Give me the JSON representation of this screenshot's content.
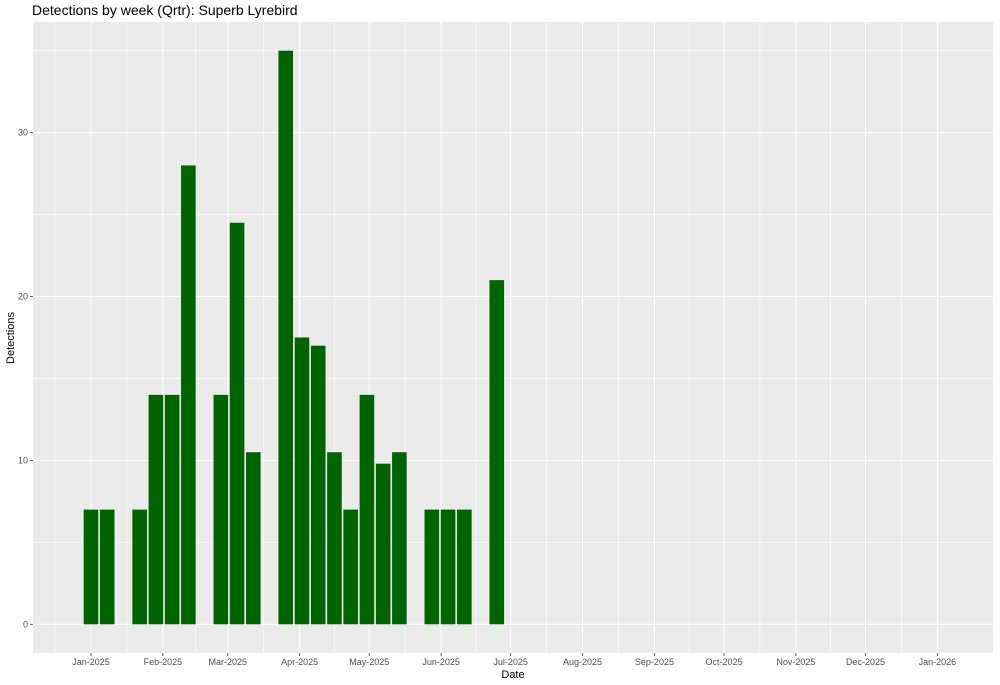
{
  "chart_data": {
    "type": "bar",
    "title": "Detections by week (Qrtr): Superb Lyrebird",
    "xlabel": "Date",
    "ylabel": "Detections",
    "x_range": [
      "2024-12-07",
      "2026-01-25"
    ],
    "ylim": [
      -1.75,
      36.75
    ],
    "bar_color": "#006400",
    "grid": true,
    "x_ticks": [
      {
        "date": "2025-01-01",
        "label": "Jan-2025"
      },
      {
        "date": "2025-02-01",
        "label": "Feb-2025"
      },
      {
        "date": "2025-03-01",
        "label": "Mar-2025"
      },
      {
        "date": "2025-04-01",
        "label": "Apr-2025"
      },
      {
        "date": "2025-05-01",
        "label": "May-2025"
      },
      {
        "date": "2025-06-01",
        "label": "Jun-2025"
      },
      {
        "date": "2025-07-01",
        "label": "Jul-2025"
      },
      {
        "date": "2025-08-01",
        "label": "Aug-2025"
      },
      {
        "date": "2025-09-01",
        "label": "Sep-2025"
      },
      {
        "date": "2025-10-01",
        "label": "Oct-2025"
      },
      {
        "date": "2025-11-01",
        "label": "Nov-2025"
      },
      {
        "date": "2025-12-01",
        "label": "Dec-2025"
      },
      {
        "date": "2026-01-01",
        "label": "Jan-2026"
      }
    ],
    "y_ticks": [
      0,
      10,
      20,
      30
    ],
    "bars": [
      {
        "week": "2025-01-01",
        "value": 7
      },
      {
        "week": "2025-01-08",
        "value": 7
      },
      {
        "week": "2025-01-22",
        "value": 7
      },
      {
        "week": "2025-01-29",
        "value": 14
      },
      {
        "week": "2025-02-05",
        "value": 14
      },
      {
        "week": "2025-02-12",
        "value": 28
      },
      {
        "week": "2025-02-26",
        "value": 14
      },
      {
        "week": "2025-03-05",
        "value": 24.5
      },
      {
        "week": "2025-03-12",
        "value": 10.5
      },
      {
        "week": "2025-03-26",
        "value": 35
      },
      {
        "week": "2025-04-02",
        "value": 17.5
      },
      {
        "week": "2025-04-09",
        "value": 17
      },
      {
        "week": "2025-04-16",
        "value": 10.5
      },
      {
        "week": "2025-04-23",
        "value": 7
      },
      {
        "week": "2025-04-30",
        "value": 14
      },
      {
        "week": "2025-05-07",
        "value": 9.8
      },
      {
        "week": "2025-05-14",
        "value": 10.5
      },
      {
        "week": "2025-05-28",
        "value": 7
      },
      {
        "week": "2025-06-04",
        "value": 7
      },
      {
        "week": "2025-06-11",
        "value": 7
      },
      {
        "week": "2025-06-25",
        "value": 21
      }
    ]
  }
}
